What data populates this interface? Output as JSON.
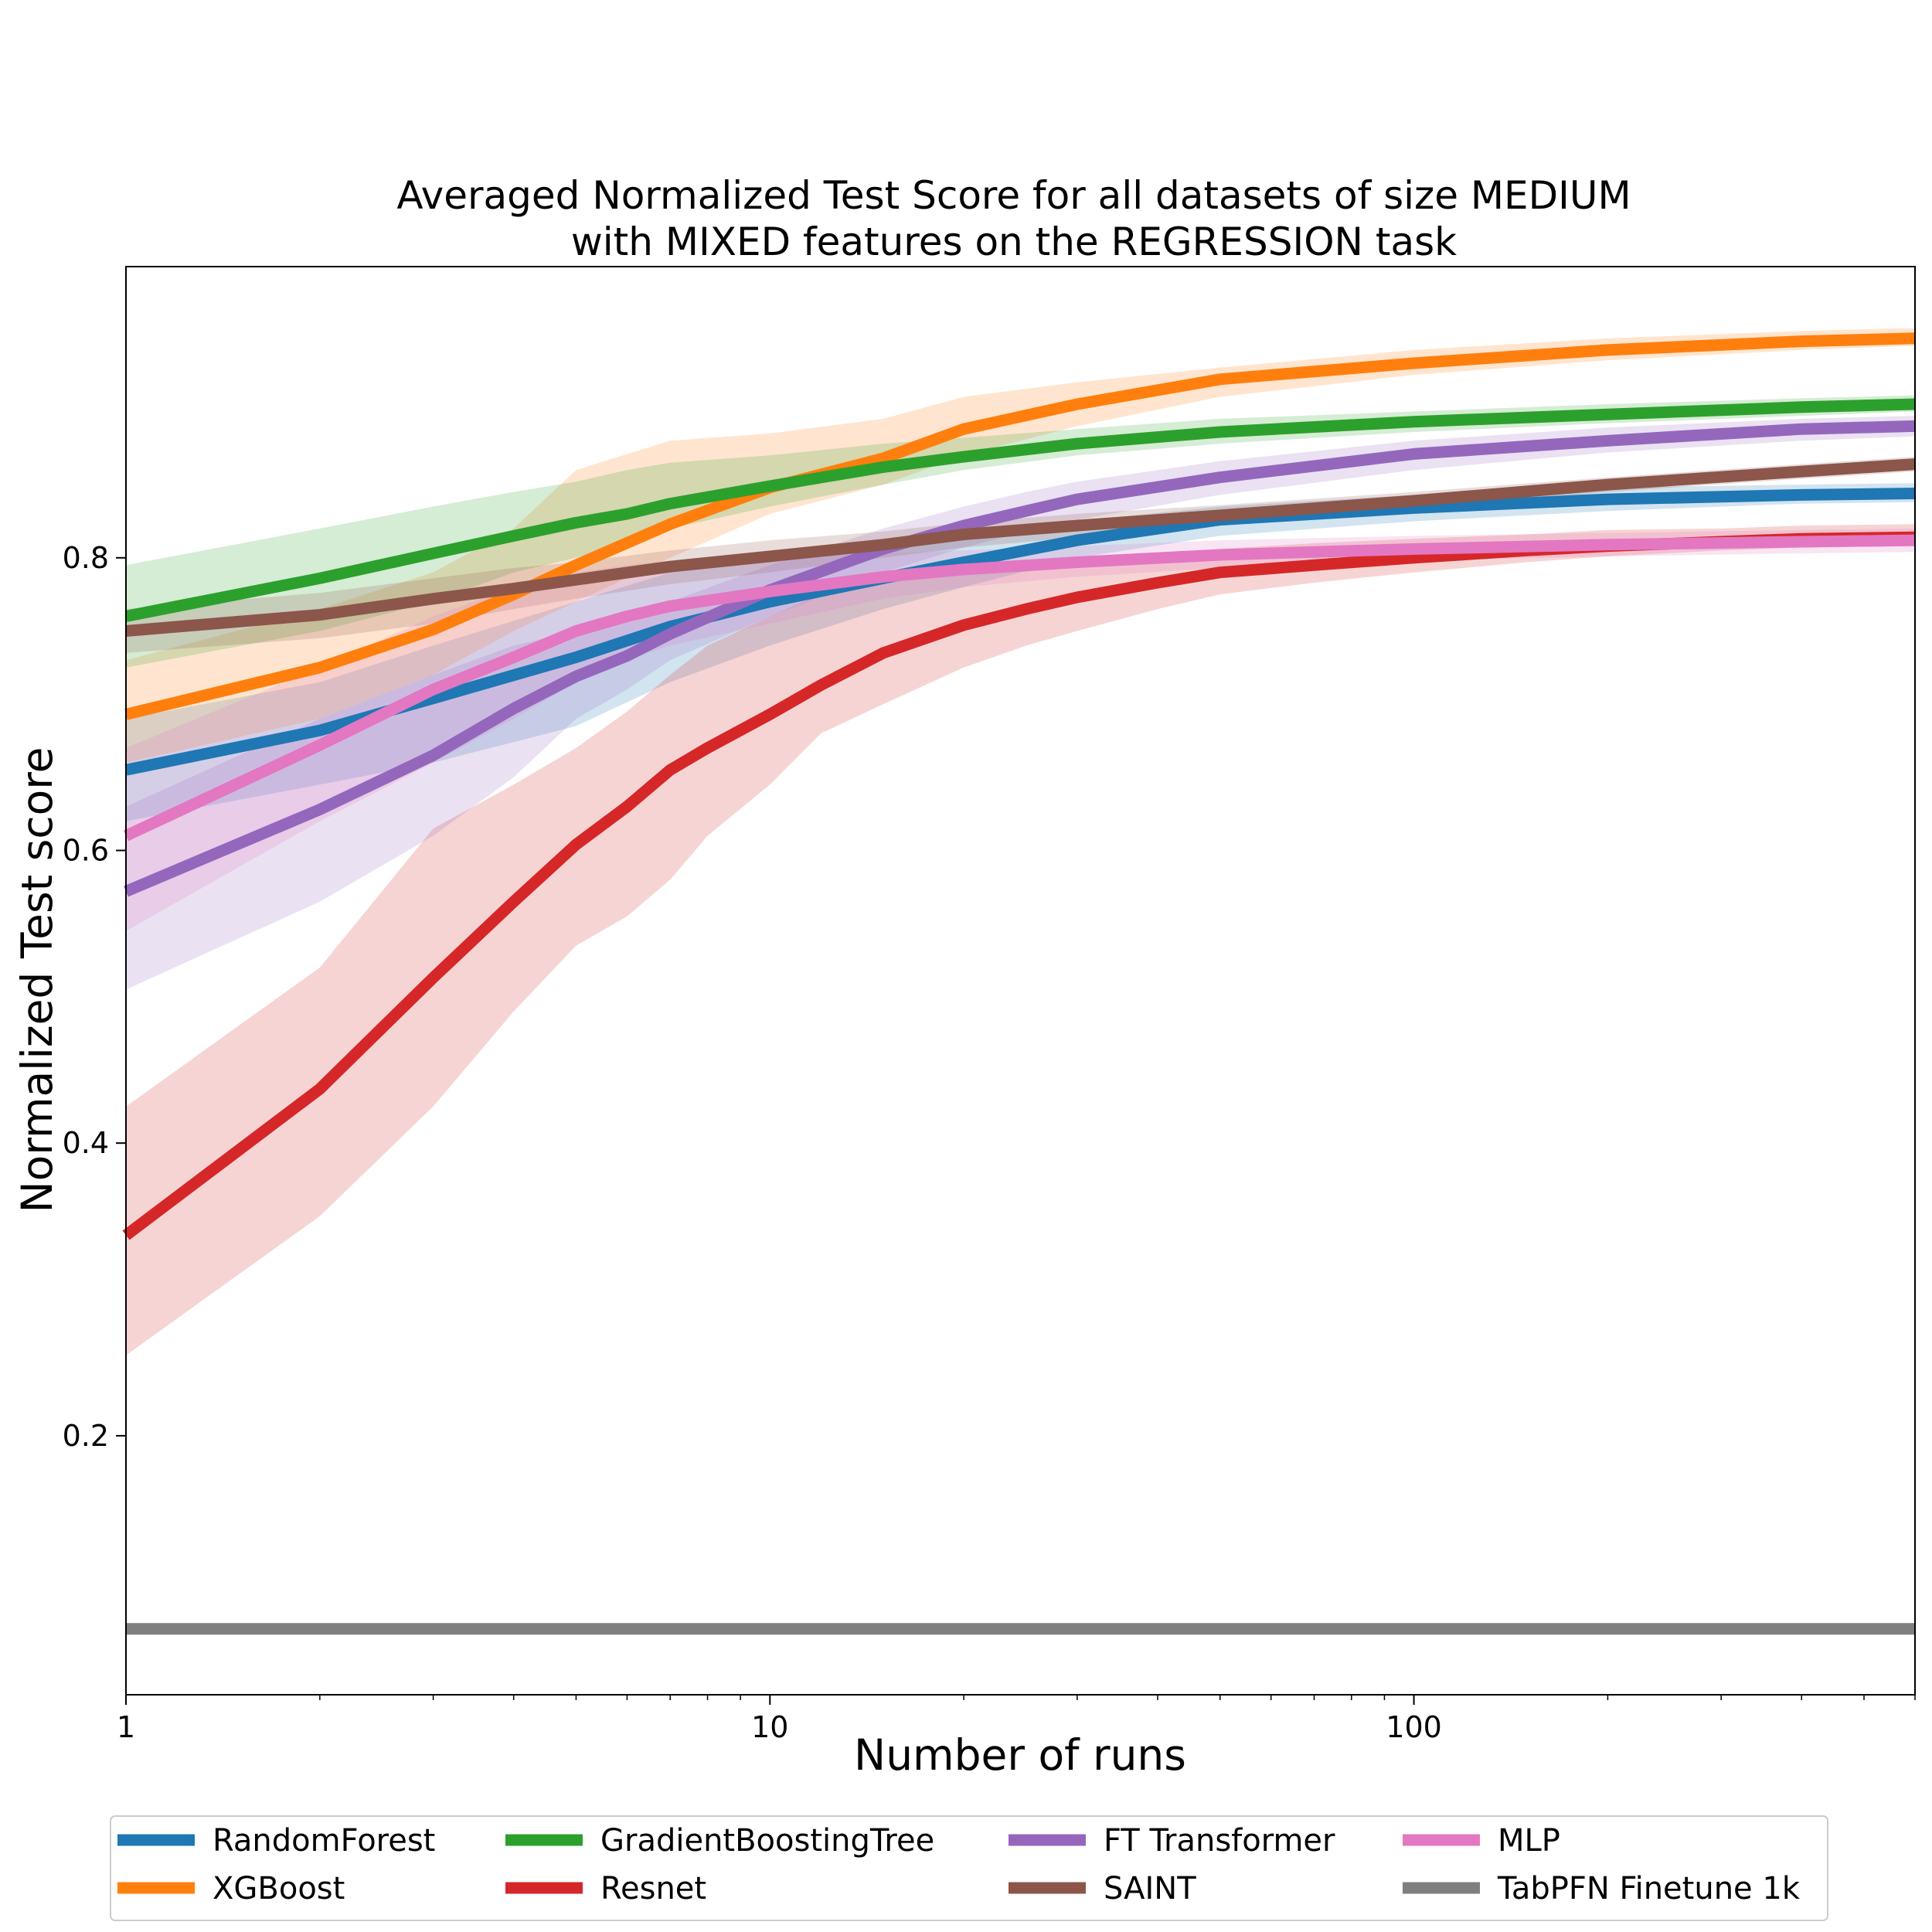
{
  "chart_data": {
    "type": "line",
    "title": "Averaged Normalized Test Score for all datasets of size MEDIUM",
    "subtitle": "with MIXED features on the REGRESSION task",
    "xlabel": "Number of runs",
    "ylabel": "Normalized Test score",
    "xscale": "log",
    "xlim": [
      1,
      600
    ],
    "ylim": [
      0.023,
      0.999
    ],
    "xticks": [
      {
        "value": 1,
        "label": "1"
      },
      {
        "value": 10,
        "label": "10"
      },
      {
        "value": 100,
        "label": "100"
      }
    ],
    "yticks": [
      {
        "value": 0.2,
        "label": "0.2"
      },
      {
        "value": 0.4,
        "label": "0.4"
      },
      {
        "value": 0.6,
        "label": "0.6"
      },
      {
        "value": 0.8,
        "label": "0.8"
      }
    ],
    "grid": false,
    "legend_position": "bottom",
    "series": [
      {
        "name": "RandomForest",
        "color": "#1f77b4",
        "x": [
          1,
          2,
          3,
          5,
          7,
          10,
          15,
          20,
          30,
          50,
          100,
          200,
          400,
          600
        ],
        "y": [
          0.655,
          0.682,
          0.704,
          0.732,
          0.753,
          0.77,
          0.786,
          0.797,
          0.812,
          0.826,
          0.834,
          0.84,
          0.843,
          0.844
        ],
        "lower": [
          0.62,
          0.645,
          0.66,
          0.685,
          0.715,
          0.74,
          0.765,
          0.78,
          0.8,
          0.815,
          0.825,
          0.832,
          0.837,
          0.838
        ],
        "upper": [
          0.69,
          0.715,
          0.74,
          0.77,
          0.79,
          0.8,
          0.81,
          0.815,
          0.825,
          0.835,
          0.843,
          0.848,
          0.85,
          0.851
        ]
      },
      {
        "name": "XGBoost",
        "color": "#ff7f0e",
        "x": [
          1,
          2,
          3,
          4,
          5,
          7,
          10,
          15,
          20,
          30,
          50,
          100,
          200,
          400,
          600
        ],
        "y": [
          0.693,
          0.725,
          0.751,
          0.775,
          0.795,
          0.823,
          0.848,
          0.868,
          0.888,
          0.905,
          0.922,
          0.933,
          0.942,
          0.948,
          0.95
        ],
        "lower": [
          0.66,
          0.69,
          0.72,
          0.75,
          0.77,
          0.8,
          0.83,
          0.85,
          0.87,
          0.89,
          0.91,
          0.925,
          0.935,
          0.942,
          0.945
        ],
        "upper": [
          0.73,
          0.765,
          0.79,
          0.82,
          0.86,
          0.88,
          0.885,
          0.895,
          0.91,
          0.92,
          0.93,
          0.942,
          0.95,
          0.955,
          0.957
        ]
      },
      {
        "name": "GradientBoostingTree",
        "color": "#2ca02c",
        "x": [
          1,
          2,
          3,
          4,
          5,
          6,
          7,
          10,
          15,
          20,
          30,
          50,
          100,
          200,
          400,
          600
        ],
        "y": [
          0.76,
          0.786,
          0.803,
          0.815,
          0.824,
          0.83,
          0.837,
          0.849,
          0.862,
          0.869,
          0.878,
          0.886,
          0.893,
          0.898,
          0.903,
          0.905
        ],
        "lower": [
          0.725,
          0.75,
          0.77,
          0.79,
          0.8,
          0.81,
          0.82,
          0.835,
          0.85,
          0.86,
          0.87,
          0.878,
          0.886,
          0.892,
          0.897,
          0.9
        ],
        "upper": [
          0.795,
          0.82,
          0.835,
          0.845,
          0.852,
          0.86,
          0.865,
          0.87,
          0.878,
          0.882,
          0.888,
          0.895,
          0.9,
          0.905,
          0.909,
          0.911
        ]
      },
      {
        "name": "Resnet",
        "color": "#d62728",
        "x": [
          1,
          2,
          3,
          4,
          5,
          6,
          7,
          8,
          10,
          12,
          15,
          20,
          25,
          30,
          40,
          50,
          70,
          100,
          150,
          200,
          300,
          400,
          600
        ],
        "y": [
          0.337,
          0.437,
          0.513,
          0.565,
          0.604,
          0.63,
          0.655,
          0.67,
          0.693,
          0.713,
          0.735,
          0.754,
          0.765,
          0.773,
          0.783,
          0.79,
          0.795,
          0.8,
          0.805,
          0.808,
          0.811,
          0.813,
          0.814
        ],
        "lower": [
          0.255,
          0.35,
          0.425,
          0.49,
          0.535,
          0.555,
          0.58,
          0.61,
          0.645,
          0.68,
          0.7,
          0.725,
          0.74,
          0.75,
          0.765,
          0.775,
          0.783,
          0.79,
          0.797,
          0.801,
          0.805,
          0.807,
          0.808
        ],
        "upper": [
          0.425,
          0.52,
          0.615,
          0.645,
          0.67,
          0.695,
          0.72,
          0.74,
          0.76,
          0.775,
          0.785,
          0.79,
          0.795,
          0.8,
          0.802,
          0.806,
          0.81,
          0.813,
          0.816,
          0.819,
          0.82,
          0.822,
          0.823
        ]
      },
      {
        "name": "FT Transformer",
        "color": "#9467bd",
        "x": [
          1,
          2,
          3,
          4,
          5,
          6,
          7,
          10,
          15,
          20,
          25,
          30,
          50,
          100,
          200,
          400,
          600
        ],
        "y": [
          0.572,
          0.628,
          0.665,
          0.697,
          0.719,
          0.733,
          0.748,
          0.778,
          0.806,
          0.822,
          0.832,
          0.84,
          0.855,
          0.871,
          0.88,
          0.888,
          0.89
        ],
        "lower": [
          0.505,
          0.565,
          0.61,
          0.65,
          0.69,
          0.71,
          0.73,
          0.76,
          0.79,
          0.807,
          0.818,
          0.826,
          0.843,
          0.86,
          0.872,
          0.88,
          0.883
        ],
        "upper": [
          0.63,
          0.69,
          0.72,
          0.74,
          0.75,
          0.76,
          0.77,
          0.795,
          0.82,
          0.835,
          0.845,
          0.852,
          0.866,
          0.88,
          0.889,
          0.895,
          0.897
        ]
      },
      {
        "name": "SAINT",
        "color": "#8c564b",
        "x": [
          1,
          2,
          3,
          4,
          5,
          7,
          10,
          15,
          20,
          30,
          50,
          100,
          200,
          400,
          600
        ],
        "y": [
          0.75,
          0.761,
          0.772,
          0.779,
          0.785,
          0.794,
          0.801,
          0.809,
          0.816,
          0.822,
          0.829,
          0.839,
          0.85,
          0.859,
          0.864
        ],
        "lower": [
          0.735,
          0.745,
          0.755,
          0.765,
          0.772,
          0.782,
          0.79,
          0.8,
          0.807,
          0.814,
          0.822,
          0.833,
          0.845,
          0.854,
          0.859
        ],
        "upper": [
          0.765,
          0.776,
          0.786,
          0.793,
          0.797,
          0.805,
          0.812,
          0.818,
          0.824,
          0.83,
          0.836,
          0.845,
          0.855,
          0.864,
          0.869
        ]
      },
      {
        "name": "MLP",
        "color": "#e377c2",
        "x": [
          1,
          2,
          3,
          4,
          5,
          6,
          7,
          10,
          15,
          20,
          30,
          50,
          100,
          200,
          400,
          600
        ],
        "y": [
          0.61,
          0.672,
          0.71,
          0.732,
          0.75,
          0.76,
          0.767,
          0.777,
          0.787,
          0.792,
          0.797,
          0.802,
          0.806,
          0.809,
          0.811,
          0.812
        ],
        "lower": [
          0.545,
          0.62,
          0.66,
          0.69,
          0.715,
          0.73,
          0.74,
          0.755,
          0.772,
          0.78,
          0.787,
          0.793,
          0.798,
          0.801,
          0.803,
          0.804
        ],
        "upper": [
          0.67,
          0.725,
          0.76,
          0.78,
          0.79,
          0.795,
          0.798,
          0.8,
          0.803,
          0.805,
          0.808,
          0.812,
          0.815,
          0.817,
          0.819,
          0.82
        ]
      },
      {
        "name": "TabPFN Finetune 1k",
        "color": "#7f7f7f",
        "x": [
          1,
          600
        ],
        "y": [
          0.068,
          0.068
        ]
      }
    ]
  }
}
